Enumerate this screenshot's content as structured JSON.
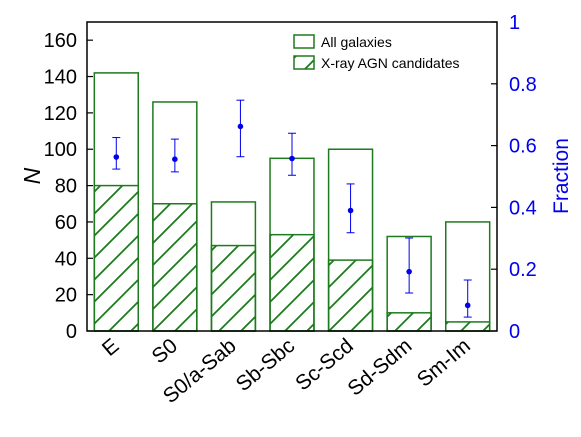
{
  "chart_data": {
    "type": "bar",
    "categories": [
      "E",
      "S0",
      "S0/a-Sab",
      "Sb-Sbc",
      "Sc-Scd",
      "Sd-Sdm",
      "Sm-Im"
    ],
    "series": [
      {
        "name": "All galaxies",
        "values": [
          142,
          126,
          71,
          95,
          100,
          52,
          60
        ],
        "color": "#1e7a1e",
        "fill": "none"
      },
      {
        "name": "X-ray AGN candidates",
        "values": [
          80,
          70,
          47,
          53,
          39,
          10,
          5
        ],
        "color": "#1e7a1e",
        "fill": "hatch"
      }
    ],
    "fraction": {
      "values": [
        0.563,
        0.556,
        0.662,
        0.558,
        0.39,
        0.192,
        0.083
      ],
      "err_low": [
        0.039,
        0.041,
        0.098,
        0.054,
        0.072,
        0.069,
        0.038
      ],
      "err_high": [
        0.063,
        0.065,
        0.085,
        0.082,
        0.086,
        0.109,
        0.082
      ],
      "color": "#0000ee"
    },
    "ylabel": "N",
    "ylim": [
      0,
      170
    ],
    "yticks": [
      0,
      20,
      40,
      60,
      80,
      100,
      120,
      140,
      160
    ],
    "y2label": "Fraction",
    "y2lim": [
      0,
      1
    ],
    "y2ticks": [
      0,
      0.2,
      0.4,
      0.6,
      0.8,
      1
    ],
    "y2ticklabels": [
      "0",
      "0.2",
      "0.4",
      "0.6",
      "0.8",
      "1"
    ],
    "legend_placement": "top-right",
    "grid": false
  }
}
